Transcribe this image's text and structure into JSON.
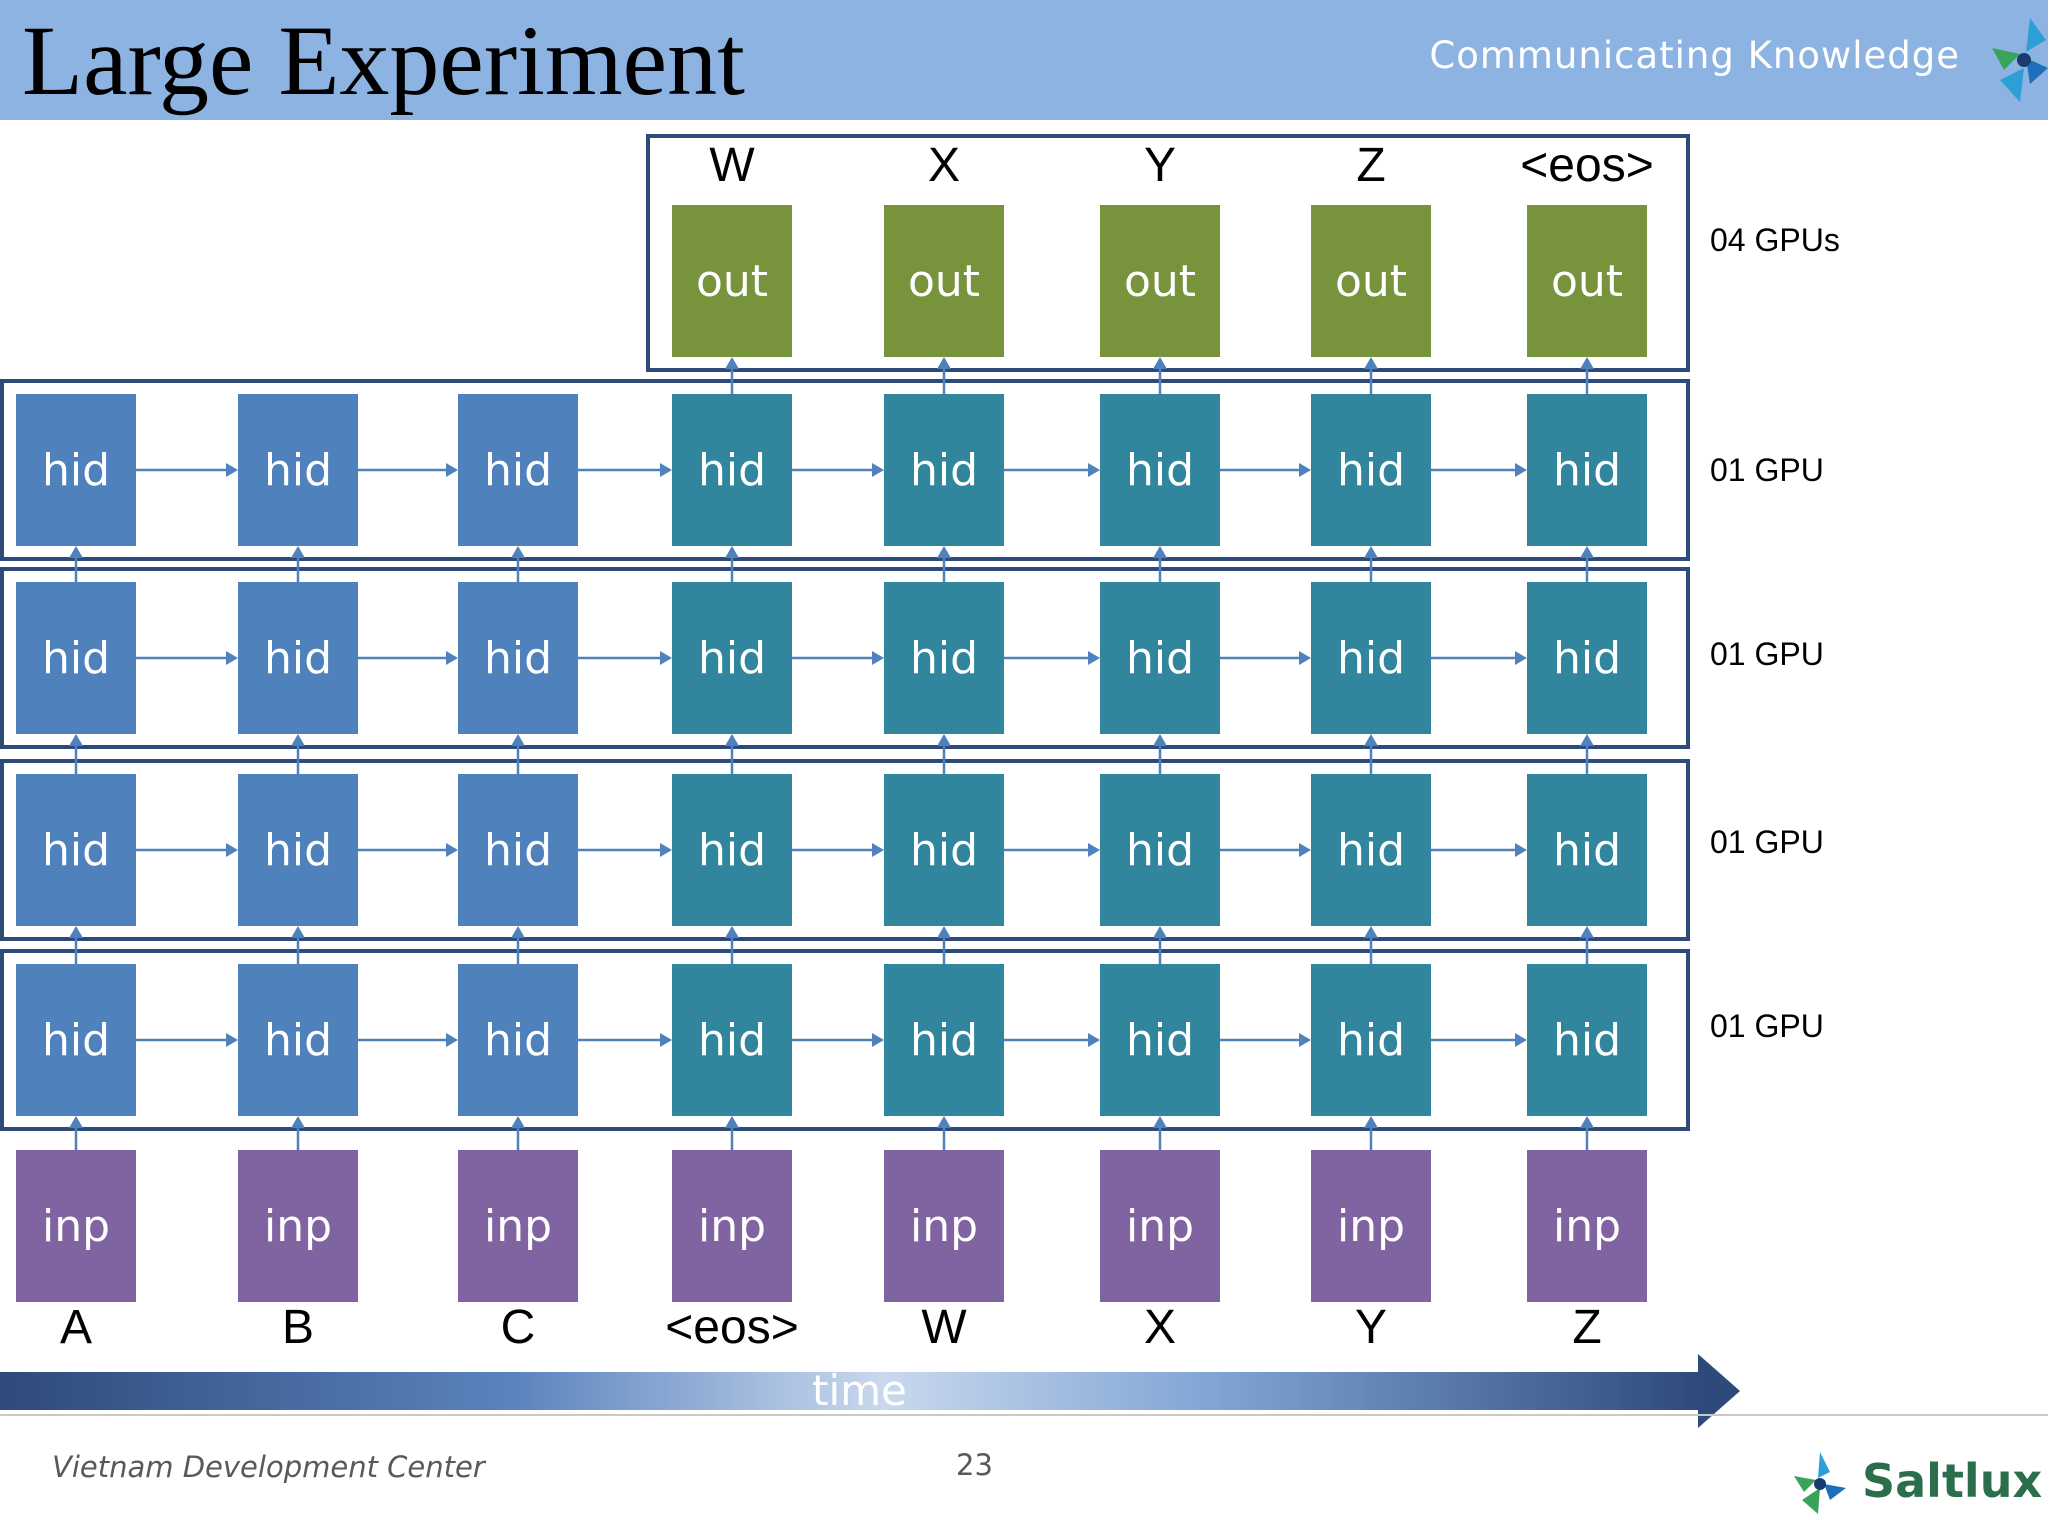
{
  "header": {
    "title": "Large Experiment",
    "tagline": "Communicating Knowledge"
  },
  "diagram": {
    "inputs": [
      "inp",
      "inp",
      "inp",
      "inp",
      "inp",
      "inp",
      "inp",
      "inp"
    ],
    "input_tokens": [
      "A",
      "B",
      "C",
      "<eos>",
      "W",
      "X",
      "Y",
      "Z"
    ],
    "hidden_label": "hid",
    "outputs": [
      "out",
      "out",
      "out",
      "out",
      "out"
    ],
    "output_tokens": [
      "W",
      "X",
      "Y",
      "Z",
      "<eos>"
    ],
    "gpu_labels": [
      "04 GPUs",
      "01 GPU",
      "01 GPU",
      "01 GPU",
      "01 GPU"
    ],
    "time_label": "time",
    "colors": {
      "input": "#8064a2",
      "hidden_encoder": "#4f81bd",
      "hidden_decoder": "#31859c",
      "output": "#77933c",
      "border": "#2d4a78"
    }
  },
  "footer": {
    "org": "Vietnam Development Center",
    "page": "23",
    "logo_text": "Saltlux"
  }
}
